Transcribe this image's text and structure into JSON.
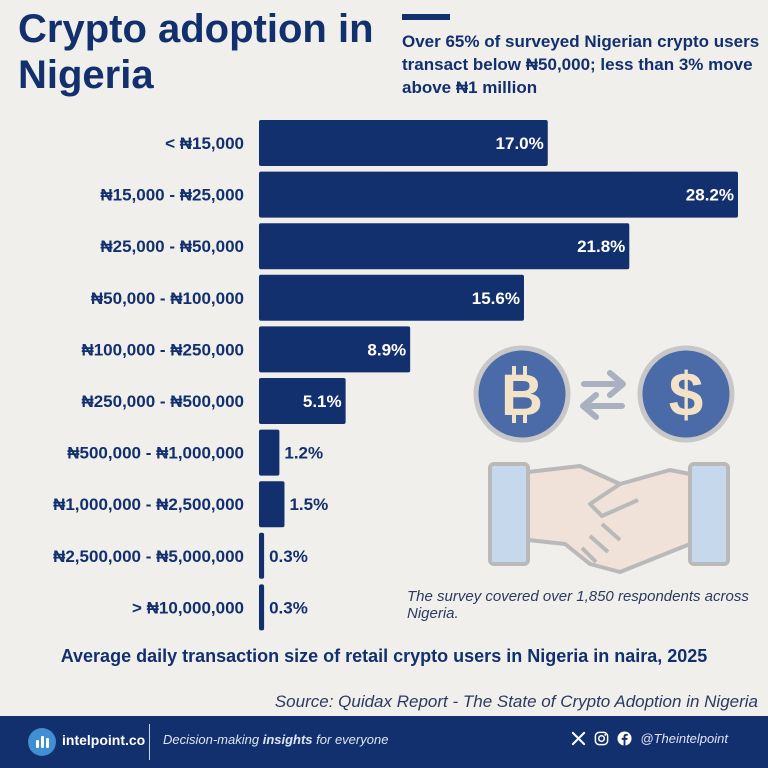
{
  "header": {
    "title": "Crypto adoption in Nigeria",
    "subtitle": "Over 65% of surveyed Nigerian crypto users transact below ₦50,000; less than 3% move above ₦1 million"
  },
  "chart_data": {
    "type": "bar",
    "orientation": "horizontal",
    "title": "Average daily transaction size of retail crypto users in Nigeria in naira, 2025",
    "categories": [
      "< ₦15,000",
      "₦15,000 - ₦25,000",
      "₦25,000 - ₦50,000",
      "₦50,000 - ₦100,000",
      "₦100,000 - ₦250,000",
      "₦250,000 - ₦500,000",
      "₦500,000 - ₦1,000,000",
      "₦1,000,000 - ₦2,500,000",
      "₦2,500,000 - ₦5,000,000",
      "> ₦10,000,000"
    ],
    "values": [
      17.0,
      28.2,
      21.8,
      15.6,
      8.9,
      5.1,
      1.2,
      1.5,
      0.3,
      0.3
    ],
    "value_labels": [
      "17.0%",
      "28.2%",
      "21.8%",
      "15.6%",
      "8.9%",
      "5.1%",
      "1.2%",
      "1.5%",
      "0.3%",
      "0.3%"
    ],
    "unit": "%",
    "xlim": [
      0,
      28.2
    ],
    "grid": false,
    "bar_color": "#12306e"
  },
  "illustration": {
    "icons": [
      "bitcoin-icon",
      "exchange-arrows-icon",
      "dollar-icon",
      "handshake-icon"
    ]
  },
  "note": "The survey covered over 1,850 respondents across Nigeria.",
  "source": "Source: Quidax Report - The State of Crypto Adoption in Nigeria",
  "footer": {
    "brand": "intelpoint.co",
    "tagline_pre": "Decision-making ",
    "tagline_bold": "insights",
    "tagline_post": " for everyone",
    "social_icons": [
      "x-icon",
      "instagram-icon",
      "facebook-icon"
    ],
    "handle": "@Theintelpoint"
  }
}
